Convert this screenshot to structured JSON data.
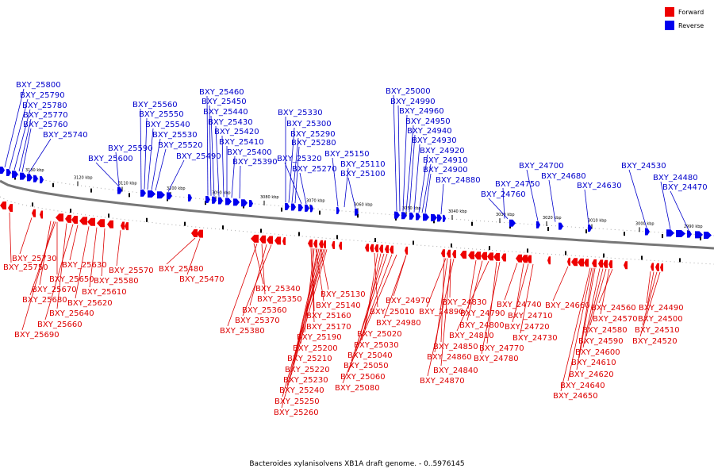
{
  "legend": [
    {
      "label": "Forward",
      "color": "#ee0000"
    },
    {
      "label": "Reverse",
      "color": "#0000ee"
    }
  ],
  "caption": "Bacteroides xylanisolvens XB1A draft genome. - 0..5976145",
  "scale_ticks": [
    "3130 kbp",
    "3120 kbp",
    "3110 kbp",
    "3100 kbp",
    "3090 kbp",
    "3080 kbp",
    "3070 kbp",
    "3060 kbp",
    "3050 kbp",
    "3040 kbp",
    "3030 kbp",
    "3020 kbp",
    "3010 kbp",
    "3000 kbp",
    "2990 kbp"
  ],
  "reverse_labels": [
    "BXY_25800",
    "BXY_25790",
    "BXY_25780",
    "BXY_25770",
    "BXY_25760",
    "BXY_25740",
    "BXY_25600",
    "BXY_25590",
    "BXY_25560",
    "BXY_25550",
    "BXY_25540",
    "BXY_25530",
    "BXY_25520",
    "BXY_25490",
    "BXY_25460",
    "BXY_25450",
    "BXY_25440",
    "BXY_25430",
    "BXY_25420",
    "BXY_25410",
    "BXY_25400",
    "BXY_25390",
    "BXY_25330",
    "BXY_25300",
    "BXY_25290",
    "BXY_25280",
    "BXY_25320",
    "BXY_25270",
    "BXY_25150",
    "BXY_25110",
    "BXY_25100",
    "BXY_25000",
    "BXY_24990",
    "BXY_24960",
    "BXY_24950",
    "BXY_24940",
    "BXY_24930",
    "BXY_24920",
    "BXY_24910",
    "BXY_24900",
    "BXY_24880",
    "BXY_24750",
    "BXY_24760",
    "BXY_24700",
    "BXY_24680",
    "BXY_24630",
    "BXY_24530",
    "BXY_24480",
    "BXY_24470"
  ],
  "forward_labels": [
    "BXY_25730",
    "BXY_25750",
    "BXY_25630",
    "BXY_25670",
    "BXY_25650",
    "BXY_25680",
    "BXY_25640",
    "BXY_25660",
    "BXY_25690",
    "BXY_25620",
    "BXY_25610",
    "BXY_25580",
    "BXY_25570",
    "BXY_25480",
    "BXY_25470",
    "BXY_25340",
    "BXY_25350",
    "BXY_25360",
    "BXY_25370",
    "BXY_25380",
    "BXY_25130",
    "BXY_25140",
    "BXY_25160",
    "BXY_25170",
    "BXY_25190",
    "BXY_25200",
    "BXY_25210",
    "BXY_25220",
    "BXY_25230",
    "BXY_25240",
    "BXY_25250",
    "BXY_25260",
    "BXY_25010",
    "BXY_25020",
    "BXY_25030",
    "BXY_25040",
    "BXY_25050",
    "BXY_25060",
    "BXY_25080",
    "BXY_24970",
    "BXY_24980",
    "BXY_24830",
    "BXY_24890",
    "BXY_24790",
    "BXY_24800",
    "BXY_24810",
    "BXY_24850",
    "BXY_24860",
    "BXY_24840",
    "BXY_24870",
    "BXY_24740",
    "BXY_24710",
    "BXY_24720",
    "BXY_24730",
    "BXY_24770",
    "BXY_24780",
    "BXY_24660",
    "BXY_24560",
    "BXY_24570",
    "BXY_24580",
    "BXY_24590",
    "BXY_24600",
    "BXY_24610",
    "BXY_24620",
    "BXY_24640",
    "BXY_24650",
    "BXY_24490",
    "BXY_24500",
    "BXY_24510",
    "BXY_24520"
  ]
}
